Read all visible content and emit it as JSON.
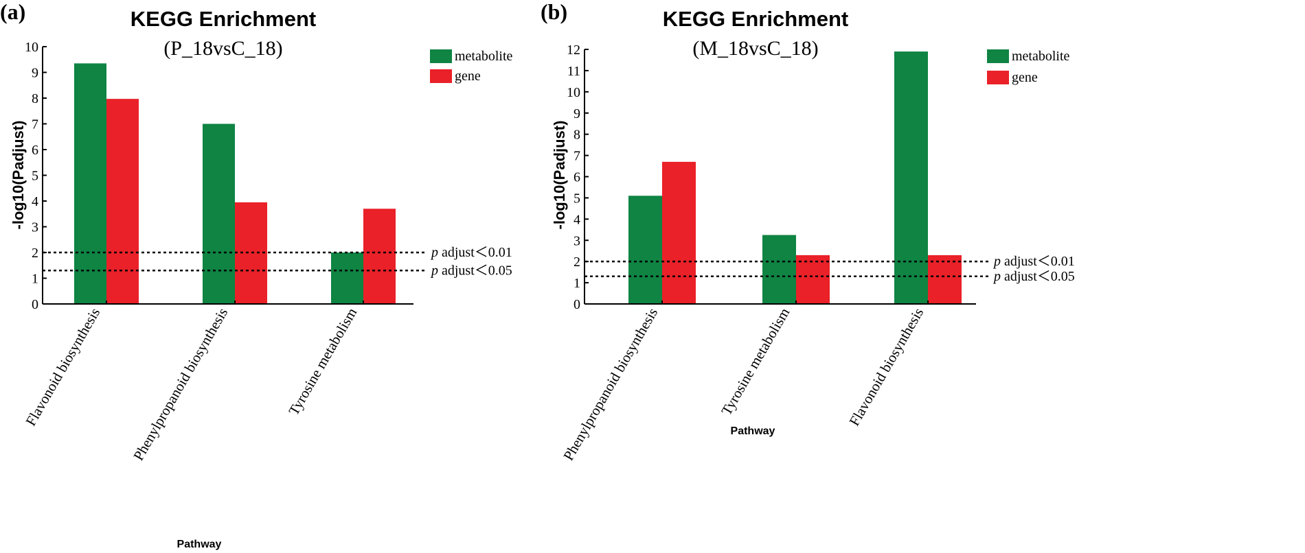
{
  "chart_data": [
    {
      "type": "bar",
      "panel_label": "(a)",
      "title": "KEGG Enrichment",
      "subtitle": "(P_18vsC_18)",
      "xlabel": "Pathway",
      "ylabel": "-log10(Padjust)",
      "ylim": [
        0,
        10
      ],
      "yticks": [
        0,
        1,
        2,
        3,
        4,
        5,
        6,
        7,
        8,
        9,
        10
      ],
      "categories": [
        "Flavonoid biosynthesis",
        "Phenylpropanoid biosynthesis",
        "Tyrosine metabolism"
      ],
      "series": [
        {
          "name": "metabolite",
          "color": "#0f8443",
          "values": [
            9.35,
            7.0,
            2.0
          ]
        },
        {
          "name": "gene",
          "color": "#ea2128",
          "values": [
            7.97,
            3.95,
            3.7
          ]
        }
      ],
      "thresholds": [
        {
          "value": 2.0,
          "prefix": "p",
          "label": " adjust＜0.01"
        },
        {
          "value": 1.3,
          "prefix": "p",
          "label": " adjust＜0.05"
        }
      ],
      "legend_position": "top-right",
      "grid": false
    },
    {
      "type": "bar",
      "panel_label": "(b)",
      "title": "KEGG Enrichment",
      "subtitle": "(M_18vsC_18)",
      "xlabel": "Pathway",
      "ylabel": "-log10(Padjust)",
      "ylim": [
        0,
        12
      ],
      "yticks": [
        0,
        1,
        2,
        3,
        4,
        5,
        6,
        7,
        8,
        9,
        10,
        11,
        12
      ],
      "categories": [
        "Phenylpropanoid biosynthesis",
        "Tyrosine metabolism",
        "Flavonoid biosynthesis"
      ],
      "series": [
        {
          "name": "metabolite",
          "color": "#0f8443",
          "values": [
            5.1,
            3.25,
            11.9
          ]
        },
        {
          "name": "gene",
          "color": "#ea2128",
          "values": [
            6.7,
            2.3,
            2.3
          ]
        }
      ],
      "thresholds": [
        {
          "value": 2.0,
          "prefix": "p",
          "label": " adjust＜0.01"
        },
        {
          "value": 1.3,
          "prefix": "p",
          "label": " adjust＜0.05"
        }
      ],
      "legend_position": "top-right",
      "grid": false
    }
  ]
}
